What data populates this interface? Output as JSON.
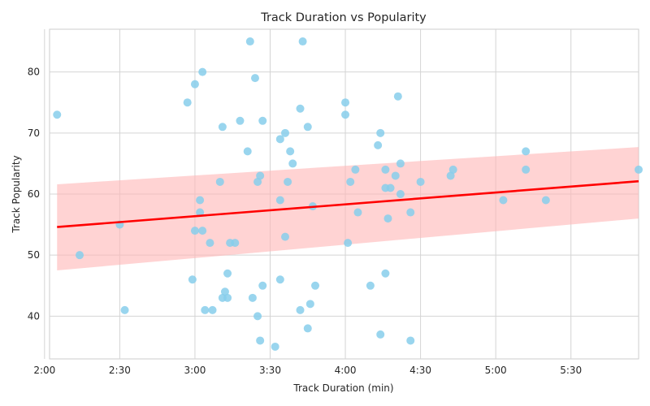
{
  "chart_data": {
    "type": "scatter",
    "title": "Track Duration vs Popularity",
    "xlabel": "Track Duration (min)",
    "ylabel": "Track Popularity",
    "xlim": [
      122,
      357
    ],
    "ylim": [
      33,
      87
    ],
    "grid": true,
    "x_ticks": [
      {
        "value": 120,
        "label": "2:00"
      },
      {
        "value": 150,
        "label": "2:30"
      },
      {
        "value": 180,
        "label": "3:00"
      },
      {
        "value": 210,
        "label": "3:30"
      },
      {
        "value": 240,
        "label": "4:00"
      },
      {
        "value": 270,
        "label": "4:30"
      },
      {
        "value": 300,
        "label": "5:00"
      },
      {
        "value": 330,
        "label": "5:30"
      }
    ],
    "y_ticks": [
      40,
      50,
      60,
      70,
      80
    ],
    "colors": {
      "points": "#87ceeb",
      "regression_line": "#ff0000",
      "confidence_band": "#ffb6b6",
      "grid": "#d4d4d4",
      "axes_edge": "#cccccc"
    },
    "points": [
      [
        125,
        73
      ],
      [
        134,
        50
      ],
      [
        150,
        55
      ],
      [
        152,
        41
      ],
      [
        177,
        75
      ],
      [
        179,
        46
      ],
      [
        180,
        54
      ],
      [
        180,
        78
      ],
      [
        182,
        59
      ],
      [
        182,
        57
      ],
      [
        183,
        80
      ],
      [
        183,
        54
      ],
      [
        184,
        41
      ],
      [
        186,
        52
      ],
      [
        187,
        41
      ],
      [
        190,
        62
      ],
      [
        191,
        71
      ],
      [
        191,
        43
      ],
      [
        192,
        44
      ],
      [
        193,
        43
      ],
      [
        193,
        47
      ],
      [
        194,
        52
      ],
      [
        196,
        52
      ],
      [
        198,
        72
      ],
      [
        201,
        67
      ],
      [
        202,
        85
      ],
      [
        203,
        43
      ],
      [
        204,
        79
      ],
      [
        205,
        62
      ],
      [
        205,
        40
      ],
      [
        206,
        63
      ],
      [
        206,
        36
      ],
      [
        207,
        72
      ],
      [
        207,
        45
      ],
      [
        212,
        35
      ],
      [
        214,
        59
      ],
      [
        214,
        69
      ],
      [
        214,
        46
      ],
      [
        216,
        70
      ],
      [
        216,
        53
      ],
      [
        217,
        62
      ],
      [
        218,
        67
      ],
      [
        219,
        65
      ],
      [
        222,
        74
      ],
      [
        222,
        41
      ],
      [
        223,
        85
      ],
      [
        225,
        71
      ],
      [
        225,
        38
      ],
      [
        226,
        42
      ],
      [
        227,
        58
      ],
      [
        228,
        45
      ],
      [
        240,
        73
      ],
      [
        240,
        75
      ],
      [
        241,
        52
      ],
      [
        242,
        62
      ],
      [
        244,
        64
      ],
      [
        245,
        57
      ],
      [
        250,
        45
      ],
      [
        253,
        68
      ],
      [
        254,
        70
      ],
      [
        254,
        37
      ],
      [
        256,
        64
      ],
      [
        256,
        61
      ],
      [
        256,
        47
      ],
      [
        257,
        56
      ],
      [
        258,
        61
      ],
      [
        260,
        63
      ],
      [
        261,
        76
      ],
      [
        262,
        65
      ],
      [
        262,
        60
      ],
      [
        266,
        57
      ],
      [
        266,
        36
      ],
      [
        270,
        62
      ],
      [
        282,
        63
      ],
      [
        283,
        64
      ],
      [
        303,
        59
      ],
      [
        312,
        67
      ],
      [
        312,
        64
      ],
      [
        320,
        59
      ],
      [
        357,
        64
      ]
    ],
    "regression": {
      "x": [
        125,
        357
      ],
      "y": [
        54.6,
        62.1
      ],
      "ci_lower": [
        47.5,
        56.0
      ],
      "ci_upper": [
        61.6,
        67.7
      ]
    }
  }
}
